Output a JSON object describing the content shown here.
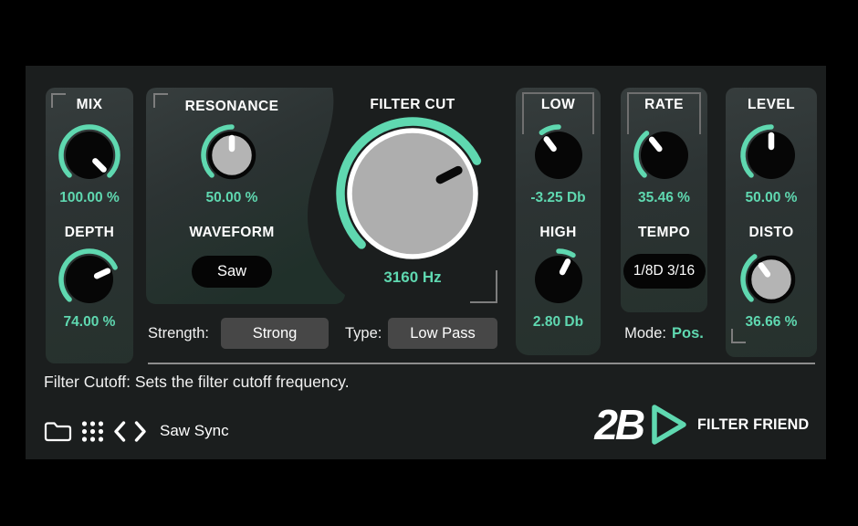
{
  "theme": {
    "accent": "#5fd8b0",
    "panel_bg": "#2c3333",
    "window_bg": "#1b1e1e",
    "knob_black": "#060606",
    "knob_gray": "#b4b4b4",
    "button_gray": "#474747"
  },
  "panels": {
    "mix_depth": {
      "mix": {
        "label": "MIX",
        "value": "100.00 %"
      },
      "depth": {
        "label": "DEPTH",
        "value": "74.00 %"
      }
    },
    "resonance": {
      "label": "RESONANCE",
      "value": "50.00 %",
      "waveform_label": "WAVEFORM",
      "waveform_value": "Saw"
    },
    "filter_cut": {
      "label": "FILTER CUT",
      "value": "3160 Hz"
    },
    "low_high": {
      "low": {
        "label": "LOW",
        "value": "-3.25 Db"
      },
      "high": {
        "label": "HIGH",
        "value": "2.80 Db"
      }
    },
    "rate_tempo": {
      "rate": {
        "label": "RATE",
        "value": "35.46 %"
      },
      "tempo_label": "TEMPO",
      "tempo_value": "1/8D 3/16",
      "mode_label": "Mode:",
      "mode_value": "Pos."
    },
    "level_disto": {
      "level": {
        "label": "LEVEL",
        "value": "50.00 %"
      },
      "disto": {
        "label": "DISTO",
        "value": "36.66 %"
      }
    }
  },
  "controls_row": {
    "strength_label": "Strength:",
    "strength_value": "Strong",
    "type_label": "Type:",
    "type_value": "Low Pass"
  },
  "status": {
    "tooltip": "Filter Cutoff: Sets the filter cutoff frequency."
  },
  "footer": {
    "preset_name": "Saw Sync",
    "icons": [
      "folder-icon",
      "preset-grid-icon",
      "prev-preset-icon",
      "next-preset-icon"
    ]
  },
  "branding": {
    "logo_text": "2B",
    "product_name": "FILTER FRIEND"
  },
  "knobs": {
    "mix": {
      "style": "black",
      "arc_start": -135,
      "arc_end": 135,
      "pointer": 135
    },
    "depth": {
      "style": "black",
      "arc_start": -135,
      "arc_end": 65,
      "pointer": 65
    },
    "resonance": {
      "style": "gray",
      "arc_start": -135,
      "arc_end": 0,
      "pointer": 0
    },
    "filter_cut": {
      "style": "big",
      "arc_start": -135,
      "arc_end": 63,
      "pointer": 63
    },
    "low": {
      "style": "black",
      "arc_start": -37,
      "arc_end": 0,
      "pointer": -37
    },
    "high": {
      "style": "black",
      "arc_start": 0,
      "arc_end": 31,
      "pointer": 27
    },
    "rate": {
      "style": "black",
      "arc_start": -135,
      "arc_end": -39,
      "pointer": -39
    },
    "level": {
      "style": "black",
      "arc_start": -135,
      "arc_end": 0,
      "pointer": 0
    },
    "disto": {
      "style": "gray",
      "arc_start": -135,
      "arc_end": -36,
      "pointer": -36
    }
  }
}
